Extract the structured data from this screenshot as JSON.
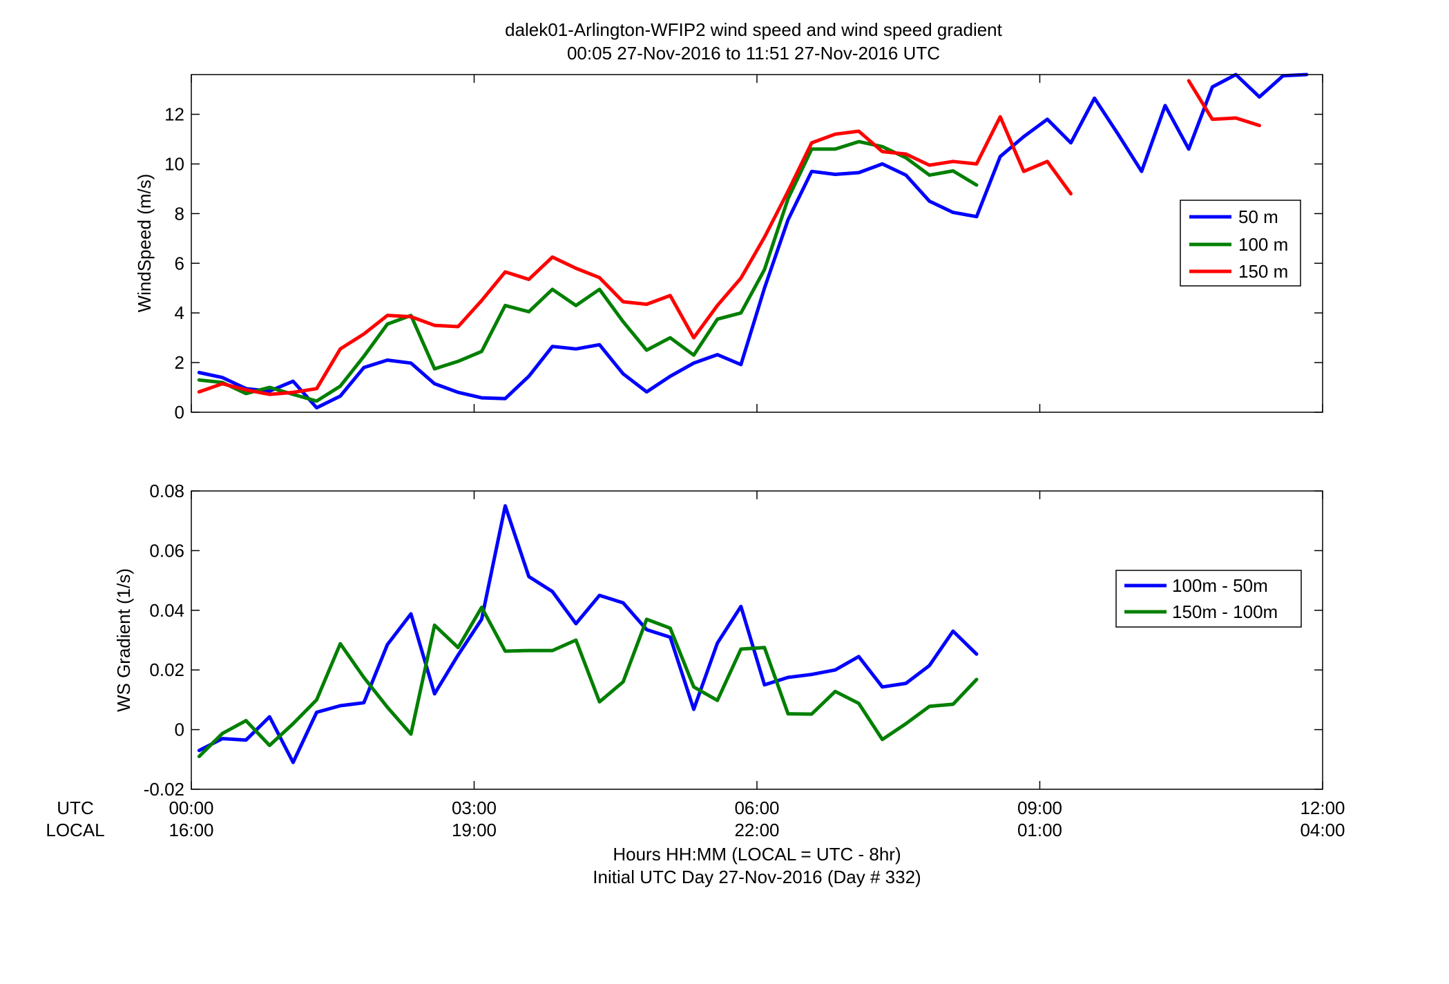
{
  "figure": {
    "title_line1": "dalek01-Arlington-WFIP2  wind speed and wind speed gradient",
    "title_line2": "00:05 27-Nov-2016 to 11:51 27-Nov-2016  UTC",
    "xlabel_line1": "Hours HH:MM  (LOCAL = UTC - 8hr)",
    "xlabel_line2": "Initial UTC Day 27-Nov-2016 (Day # 332)",
    "row_label_utc": "UTC",
    "row_label_local": "LOCAL",
    "xticks_utc": [
      "00:00",
      "03:00",
      "06:00",
      "09:00",
      "12:00"
    ],
    "xticks_local": [
      "16:00",
      "19:00",
      "22:00",
      "01:00",
      "04:00"
    ]
  },
  "chart_data": [
    {
      "type": "line",
      "title": "",
      "xlabel": "",
      "ylabel": "WindSpeed (m/s)",
      "xlim": [
        0,
        12
      ],
      "ylim": [
        0,
        13.6
      ],
      "yticks": [
        0,
        2,
        4,
        6,
        8,
        10,
        12
      ],
      "grid": false,
      "legend_position": "right",
      "series": [
        {
          "name": "50 m",
          "color": "#0000ff",
          "points": [
            [
              0.083,
              1.6
            ],
            [
              0.33,
              1.4
            ],
            [
              0.58,
              0.95
            ],
            [
              0.83,
              0.85
            ],
            [
              1.08,
              1.25
            ],
            [
              1.33,
              0.18
            ],
            [
              1.58,
              0.65
            ],
            [
              1.83,
              1.8
            ],
            [
              2.08,
              2.1
            ],
            [
              2.33,
              1.98
            ],
            [
              2.58,
              1.15
            ],
            [
              2.83,
              0.8
            ],
            [
              3.08,
              0.58
            ],
            [
              3.33,
              0.55
            ],
            [
              3.58,
              1.45
            ],
            [
              3.83,
              2.65
            ],
            [
              4.08,
              2.55
            ],
            [
              4.33,
              2.72
            ],
            [
              4.58,
              1.55
            ],
            [
              4.83,
              0.82
            ],
            [
              5.08,
              1.45
            ],
            [
              5.33,
              1.98
            ],
            [
              5.58,
              2.32
            ],
            [
              5.83,
              1.92
            ],
            [
              6.08,
              5.0
            ],
            [
              6.33,
              7.75
            ],
            [
              6.58,
              9.7
            ],
            [
              6.83,
              9.58
            ],
            [
              7.08,
              9.65
            ],
            [
              7.33,
              10.0
            ],
            [
              7.58,
              9.55
            ],
            [
              7.83,
              8.5
            ],
            [
              8.08,
              8.05
            ],
            [
              8.33,
              7.88
            ],
            [
              8.58,
              10.3
            ],
            [
              8.83,
              11.1
            ],
            [
              9.08,
              11.8
            ],
            [
              9.33,
              10.85
            ],
            [
              9.58,
              12.65
            ],
            [
              9.83,
              11.2
            ],
            [
              10.08,
              9.7
            ],
            [
              10.33,
              12.35
            ],
            [
              10.58,
              10.6
            ],
            [
              10.83,
              13.1
            ],
            [
              11.08,
              13.6
            ],
            [
              11.33,
              12.7
            ],
            [
              11.58,
              13.55
            ],
            [
              11.83,
              13.6
            ]
          ]
        },
        {
          "name": "100 m",
          "color": "#007f00",
          "points": [
            [
              0.083,
              1.3
            ],
            [
              0.33,
              1.2
            ],
            [
              0.58,
              0.75
            ],
            [
              0.83,
              1.0
            ],
            [
              1.08,
              0.72
            ],
            [
              1.33,
              0.45
            ],
            [
              1.58,
              1.05
            ],
            [
              1.83,
              2.25
            ],
            [
              2.08,
              3.55
            ],
            [
              2.33,
              3.9
            ],
            [
              2.58,
              1.75
            ],
            [
              2.83,
              2.05
            ],
            [
              3.08,
              2.45
            ],
            [
              3.33,
              4.3
            ],
            [
              3.58,
              4.05
            ],
            [
              3.83,
              4.95
            ],
            [
              4.08,
              4.3
            ],
            [
              4.33,
              4.95
            ],
            [
              4.58,
              3.65
            ],
            [
              4.83,
              2.5
            ],
            [
              5.08,
              3.0
            ],
            [
              5.33,
              2.3
            ],
            [
              5.58,
              3.75
            ],
            [
              5.83,
              4.0
            ],
            [
              6.08,
              5.75
            ],
            [
              6.33,
              8.6
            ],
            [
              6.58,
              10.6
            ],
            [
              6.83,
              10.6
            ],
            [
              7.08,
              10.9
            ],
            [
              7.33,
              10.7
            ],
            [
              7.58,
              10.25
            ],
            [
              7.83,
              9.55
            ],
            [
              8.08,
              9.72
            ],
            [
              8.33,
              9.15
            ]
          ]
        },
        {
          "name": "150 m",
          "color": "#ff0000",
          "points": [
            [
              0.083,
              0.82
            ],
            [
              0.33,
              1.15
            ],
            [
              0.58,
              0.9
            ],
            [
              0.83,
              0.72
            ],
            [
              1.08,
              0.8
            ],
            [
              1.33,
              0.95
            ],
            [
              1.58,
              2.55
            ],
            [
              1.83,
              3.15
            ],
            [
              2.08,
              3.9
            ],
            [
              2.33,
              3.85
            ],
            [
              2.58,
              3.5
            ],
            [
              2.83,
              3.45
            ],
            [
              3.08,
              4.5
            ],
            [
              3.33,
              5.65
            ],
            [
              3.58,
              5.35
            ],
            [
              3.83,
              6.25
            ],
            [
              4.08,
              5.8
            ],
            [
              4.33,
              5.42
            ],
            [
              4.58,
              4.45
            ],
            [
              4.83,
              4.35
            ],
            [
              5.08,
              4.7
            ],
            [
              5.33,
              3.0
            ],
            [
              5.58,
              4.3
            ],
            [
              5.83,
              5.4
            ],
            [
              6.08,
              7.05
            ],
            [
              6.33,
              8.9
            ],
            [
              6.58,
              10.85
            ],
            [
              6.83,
              11.2
            ],
            [
              7.08,
              11.32
            ],
            [
              7.33,
              10.5
            ],
            [
              7.58,
              10.4
            ],
            [
              7.83,
              9.95
            ],
            [
              8.08,
              10.1
            ],
            [
              8.33,
              10.0
            ],
            [
              8.58,
              11.9
            ],
            [
              8.83,
              9.7
            ],
            [
              9.08,
              10.1
            ],
            [
              9.33,
              8.8
            ],
            null,
            [
              10.58,
              13.35
            ],
            [
              10.83,
              11.8
            ],
            [
              11.08,
              11.85
            ],
            [
              11.33,
              11.55
            ]
          ]
        }
      ]
    },
    {
      "type": "line",
      "title": "",
      "xlabel": "",
      "ylabel": "WS Gradient (1/s)",
      "xlim": [
        0,
        12
      ],
      "ylim": [
        -0.02,
        0.08
      ],
      "yticks": [
        -0.02,
        0,
        0.02,
        0.04,
        0.06,
        0.08
      ],
      "grid": false,
      "legend_position": "right",
      "series": [
        {
          "name": "100m - 50m",
          "color": "#0000ff",
          "points": [
            [
              0.083,
              -0.007
            ],
            [
              0.33,
              -0.003
            ],
            [
              0.58,
              -0.0035
            ],
            [
              0.83,
              0.0043
            ],
            [
              1.08,
              -0.011
            ],
            [
              1.33,
              0.0058
            ],
            [
              1.58,
              0.008
            ],
            [
              1.83,
              0.009
            ],
            [
              2.08,
              0.0285
            ],
            [
              2.33,
              0.0388
            ],
            [
              2.58,
              0.012
            ],
            [
              2.83,
              0.025
            ],
            [
              3.08,
              0.037
            ],
            [
              3.33,
              0.075
            ],
            [
              3.58,
              0.0513
            ],
            [
              3.83,
              0.0463
            ],
            [
              4.08,
              0.0355
            ],
            [
              4.33,
              0.045
            ],
            [
              4.58,
              0.0425
            ],
            [
              4.83,
              0.0335
            ],
            [
              5.08,
              0.031
            ],
            [
              5.33,
              0.0068
            ],
            [
              5.58,
              0.029
            ],
            [
              5.83,
              0.0413
            ],
            [
              6.08,
              0.015
            ],
            [
              6.33,
              0.0175
            ],
            [
              6.58,
              0.0185
            ],
            [
              6.83,
              0.02
            ],
            [
              7.08,
              0.0245
            ],
            [
              7.33,
              0.0143
            ],
            [
              7.58,
              0.0155
            ],
            [
              7.83,
              0.0215
            ],
            [
              8.08,
              0.033
            ],
            [
              8.33,
              0.0253
            ]
          ]
        },
        {
          "name": "150m - 100m",
          "color": "#007f00",
          "points": [
            [
              0.083,
              -0.009
            ],
            [
              0.33,
              -0.0013
            ],
            [
              0.58,
              0.003
            ],
            [
              0.83,
              -0.0053
            ],
            [
              1.08,
              0.002
            ],
            [
              1.33,
              0.01
            ],
            [
              1.58,
              0.0288
            ],
            [
              1.83,
              0.0175
            ],
            [
              2.08,
              0.0075
            ],
            [
              2.33,
              -0.0015
            ],
            [
              2.58,
              0.035
            ],
            [
              2.83,
              0.0275
            ],
            [
              3.08,
              0.041
            ],
            [
              3.33,
              0.0263
            ],
            [
              3.58,
              0.0265
            ],
            [
              3.83,
              0.0265
            ],
            [
              4.08,
              0.03
            ],
            [
              4.33,
              0.0093
            ],
            [
              4.58,
              0.016
            ],
            [
              4.83,
              0.037
            ],
            [
              5.08,
              0.034
            ],
            [
              5.33,
              0.0143
            ],
            [
              5.58,
              0.0098
            ],
            [
              5.83,
              0.027
            ],
            [
              6.08,
              0.0275
            ],
            [
              6.33,
              0.0053
            ],
            [
              6.58,
              0.0052
            ],
            [
              6.83,
              0.0128
            ],
            [
              7.08,
              0.0088
            ],
            [
              7.33,
              -0.0033
            ],
            [
              7.58,
              0.002
            ],
            [
              7.83,
              0.0078
            ],
            [
              8.08,
              0.0085
            ],
            [
              8.33,
              0.0168
            ]
          ]
        }
      ]
    }
  ]
}
